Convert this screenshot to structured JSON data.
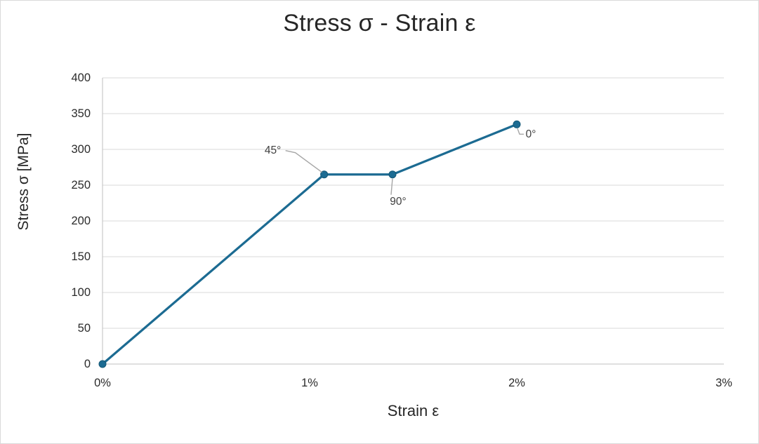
{
  "window": {
    "background_color": "#FFFFFF",
    "border_color": "#D9D9D9"
  },
  "chart_data": {
    "type": "line",
    "title": "Stress σ - Strain ε",
    "xlabel": "Strain ε",
    "ylabel": "Stress σ [MPa]",
    "xlim": [
      0,
      3
    ],
    "ylim": [
      0,
      400
    ],
    "grid": "horizontal",
    "legend": "none",
    "x_ticks": [
      {
        "value": 0,
        "label": "0%"
      },
      {
        "value": 1,
        "label": "1%"
      },
      {
        "value": 2,
        "label": "2%"
      },
      {
        "value": 3,
        "label": "3%"
      }
    ],
    "y_ticks": [
      {
        "value": 0,
        "label": "0"
      },
      {
        "value": 50,
        "label": "50"
      },
      {
        "value": 100,
        "label": "100"
      },
      {
        "value": 150,
        "label": "150"
      },
      {
        "value": 200,
        "label": "200"
      },
      {
        "value": 250,
        "label": "250"
      },
      {
        "value": 300,
        "label": "300"
      },
      {
        "value": 350,
        "label": "350"
      },
      {
        "value": 400,
        "label": "400"
      }
    ],
    "series": [
      {
        "name": "stress-strain-curve",
        "color": "#1C6B92",
        "marker": "circle",
        "points": [
          {
            "x": 0,
            "y": 0
          },
          {
            "x": 1.07,
            "y": 265
          },
          {
            "x": 1.4,
            "y": 265
          },
          {
            "x": 2,
            "y": 335
          }
        ]
      }
    ],
    "annotations": [
      {
        "text": "45°",
        "series": 0,
        "point": 1,
        "placement": "upper-left"
      },
      {
        "text": "90°",
        "series": 0,
        "point": 2,
        "placement": "below"
      },
      {
        "text": "0°",
        "series": 0,
        "point": 3,
        "placement": "lower-right"
      }
    ],
    "colors": {
      "gridline": "#D9D9D9",
      "axis_line": "#BFBFBF",
      "tick_label": "#2B2B2B",
      "title": "#262626",
      "annotation_text": "#404040",
      "leader_line": "#A6A6A6"
    }
  }
}
